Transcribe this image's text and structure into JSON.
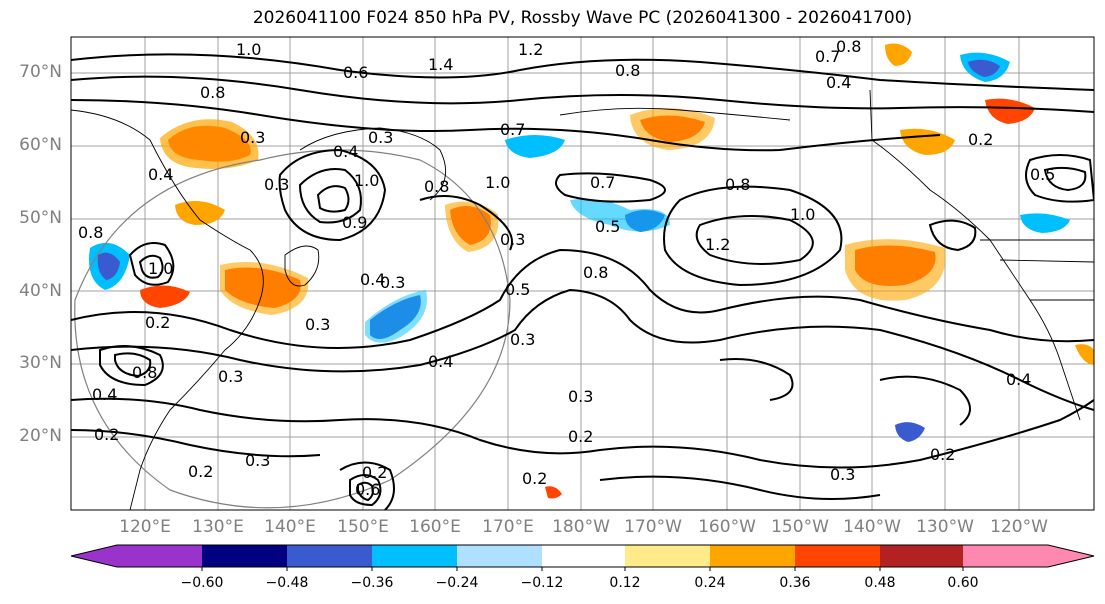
{
  "title": "2026041100 F024 850 hPa PV, Rossby Wave PC (2026041300 - 2026041700)",
  "latitude_labels": [
    "70°N",
    "60°N",
    "50°N",
    "40°N",
    "30°N",
    "20°N"
  ],
  "longitude_labels": [
    "120°E",
    "130°E",
    "140°E",
    "150°E",
    "160°E",
    "170°E",
    "180°W",
    "170°W",
    "160°W",
    "150°W",
    "140°W",
    "130°W",
    "120°W"
  ],
  "colorbar": {
    "ticks": [
      "−0.60",
      "−0.48",
      "−0.36",
      "−0.24",
      "−0.12",
      "0.12",
      "0.24",
      "0.36",
      "0.48",
      "0.60"
    ],
    "colors": [
      "#9933cc",
      "#000080",
      "#3a5bd0",
      "#00bfff",
      "#b0e0ff",
      "#ffffff",
      "#ffeb8a",
      "#ffa500",
      "#ff4500",
      "#b22222",
      "#ff88b0"
    ]
  },
  "contour_labels": [
    "1.0",
    "0.8",
    "0.6",
    "1.4",
    "1.2",
    "0.8",
    "0.7",
    "0.4",
    "0.8",
    "0.3",
    "0.7",
    "0.4",
    "0.3",
    "0.4",
    "1.0",
    "0.8",
    "1.0",
    "0.7",
    "0.3",
    "0.8",
    "1.0",
    "0.5",
    "0.9",
    "0.8",
    "0.3",
    "0.8",
    "1.2",
    "1.0",
    "0.3",
    "0.4",
    "0.5",
    "0.3",
    "0.2",
    "0.3",
    "0.8",
    "0.4",
    "0.4",
    "0.3",
    "0.3",
    "0.2",
    "0.4",
    "0.2",
    "0.2",
    "0.3",
    "0.2",
    "0.2",
    "0.2",
    "0.3",
    "0.6",
    "0.5",
    "0.2"
  ]
}
